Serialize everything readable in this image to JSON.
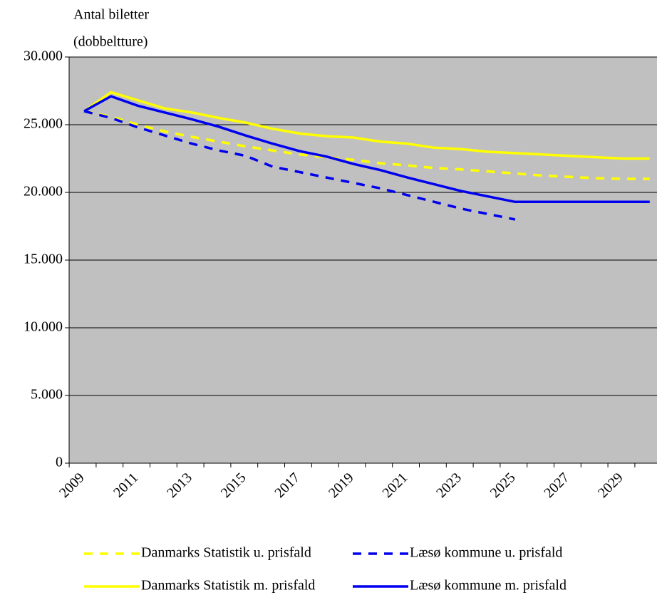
{
  "chart_data": {
    "type": "line",
    "y_label": [
      "Antal biletter",
      "(dobbeltture)"
    ],
    "categories": [
      "2009",
      null,
      "2011",
      null,
      "2013",
      null,
      "2015",
      null,
      "2017",
      null,
      "2019",
      null,
      "2021",
      null,
      "2023",
      null,
      "2025",
      null,
      "2027",
      null,
      "2029",
      null
    ],
    "series": [
      {
        "name": "Danmarks Statistik u. prisfald",
        "color": "#ffff00",
        "dashed": true,
        "values": [
          26000,
          25600,
          25000,
          24500,
          24100,
          23750,
          23400,
          23100,
          22800,
          22600,
          22400,
          22150,
          22000,
          21800,
          21700,
          21550,
          21400,
          21250,
          21150,
          21050,
          21000,
          21000
        ]
      },
      {
        "name": "Læsø kommune u. prisfald",
        "color": "#0000ee",
        "dashed": true,
        "values": [
          26000,
          25500,
          24800,
          24200,
          23600,
          23100,
          22700,
          21900,
          21500,
          21100,
          20700,
          20300,
          19800,
          19300,
          18800,
          18400,
          18000,
          null,
          null,
          null,
          null,
          null
        ]
      },
      {
        "name": "Danmarks Statistik m. prisfald",
        "color": "#ffff00",
        "dashed": false,
        "values": [
          26000,
          27400,
          26800,
          26200,
          25900,
          25500,
          25150,
          24700,
          24350,
          24150,
          24050,
          23750,
          23600,
          23300,
          23200,
          23000,
          22900,
          22800,
          22700,
          22600,
          22500,
          22500
        ]
      },
      {
        "name": "Læsø kommune m. prisfald",
        "color": "#0000ee",
        "dashed": false,
        "values": [
          26000,
          27100,
          26400,
          25900,
          25400,
          24850,
          24200,
          23600,
          23050,
          22650,
          22100,
          21650,
          21100,
          20600,
          20100,
          19700,
          19300,
          19300,
          19300,
          19300,
          19300,
          19300
        ]
      }
    ],
    "ylim": [
      0,
      30000
    ],
    "yticks": [
      0,
      {
        "value": 5000,
        "label": "5.000"
      },
      {
        "value": 10000,
        "label": "10.000"
      },
      {
        "value": 15000,
        "label": "15.000"
      },
      {
        "value": 20000,
        "label": "20.000"
      },
      {
        "value": 25000,
        "label": "25.000"
      },
      {
        "value": 30000,
        "label": "30.000"
      }
    ],
    "grid": true,
    "legend": "bottom",
    "plot_background": "#c0c0c0"
  }
}
